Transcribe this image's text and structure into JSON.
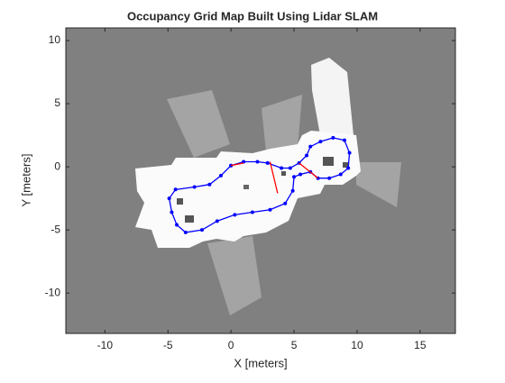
{
  "chart_data": {
    "type": "line",
    "title": "Occupancy Grid Map Built Using Lidar SLAM",
    "xlabel": "X [meters]",
    "ylabel": "Y [meters]",
    "xlim": [
      -13.1,
      17.8
    ],
    "ylim": [
      -13.2,
      11.0
    ],
    "xticks": [
      -10,
      -5,
      0,
      5,
      10,
      15
    ],
    "yticks": [
      -10,
      -5,
      0,
      5,
      10
    ],
    "grid": false,
    "series": [
      {
        "color": "#0000ff",
        "markers": true,
        "x": [
          0,
          1,
          2.1,
          2.9,
          4,
          4.7,
          5.4,
          6,
          6.3,
          7.1,
          8.1,
          9,
          9.4,
          9.3,
          8.7,
          7.8,
          6.9,
          6.3,
          5.5,
          5,
          4.9,
          4.3,
          3.1,
          1.7,
          0.3,
          -1.1,
          -2.3,
          -3.6,
          -4.3,
          -4.7,
          -4.9,
          -4.4,
          -2.9,
          -1.7,
          -0.8,
          0
        ],
        "y": [
          0.1,
          0.4,
          0.4,
          0.3,
          -0.1,
          -0.1,
          0.3,
          0.9,
          1.6,
          2,
          2.3,
          2.1,
          1.1,
          -0.1,
          -0.6,
          -0.9,
          -0.9,
          -0.4,
          -0.6,
          -0.8,
          -1.9,
          -2.9,
          -3.4,
          -3.6,
          -3.8,
          -4.3,
          -5,
          -5.2,
          -4.6,
          -3.6,
          -2.5,
          -1.8,
          -1.6,
          -1.4,
          -0.7,
          0.1
        ]
      },
      {
        "color": "#ff0000",
        "markers": false,
        "x": [
          0,
          1,
          null,
          3.1,
          3.7,
          null,
          5.4,
          6.9
        ],
        "y": [
          0.1,
          0.3,
          null,
          0.4,
          -2.1,
          null,
          0.3,
          -0.9
        ]
      }
    ]
  }
}
